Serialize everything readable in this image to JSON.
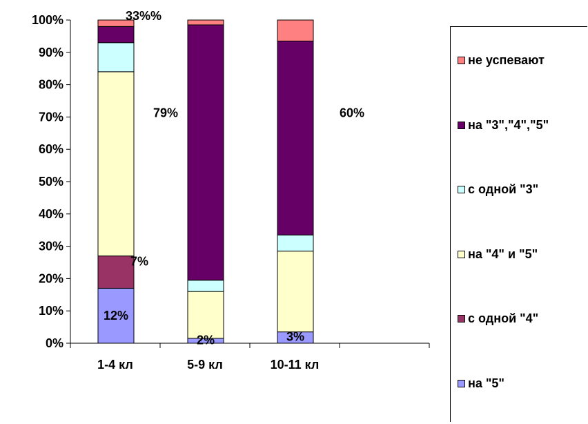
{
  "chart_data": {
    "type": "bar",
    "stacked": true,
    "categories": [
      "1-4 кл",
      "5-9 кл",
      "10-11 кл"
    ],
    "ylim": [
      0,
      100
    ],
    "yticks": [
      "0%",
      "10%",
      "20%",
      "30%",
      "40%",
      "50%",
      "60%",
      "70%",
      "80%",
      "90%",
      "100%"
    ],
    "grid": false,
    "legend_placement": "right",
    "series": [
      {
        "name": "на \"5\"",
        "color": "#9999FF",
        "values": [
          17,
          1.5,
          3.5
        ]
      },
      {
        "name": "с одной \"4\"",
        "color": "#993366",
        "values": [
          10,
          0,
          0
        ]
      },
      {
        "name": "на \"4\" и \"5\"",
        "color": "#FFFFCC",
        "values": [
          57,
          14.5,
          25
        ]
      },
      {
        "name": "с одной \"3\"",
        "color": "#CCFFFF",
        "values": [
          9,
          3.5,
          5
        ]
      },
      {
        "name": "на \"3\",\"4\",\"5\"",
        "color": "#660066",
        "values": [
          5,
          79,
          60
        ]
      },
      {
        "name": "не успевают",
        "color": "#FF8080",
        "values": [
          2,
          1.5,
          6.5
        ]
      }
    ],
    "data_labels": [
      {
        "text": "33%%",
        "category": 0,
        "y": 100
      },
      {
        "text": "7%",
        "category": 0,
        "y": 24
      },
      {
        "text": "12%",
        "category": 0,
        "y": 8.5
      },
      {
        "text": "79%",
        "category": 1,
        "y": 70
      },
      {
        "text": "2%",
        "category": 1,
        "y": 1
      },
      {
        "text": "60%",
        "category": 2,
        "y": 70
      },
      {
        "text": "3%",
        "category": 2,
        "y": 2
      }
    ]
  }
}
